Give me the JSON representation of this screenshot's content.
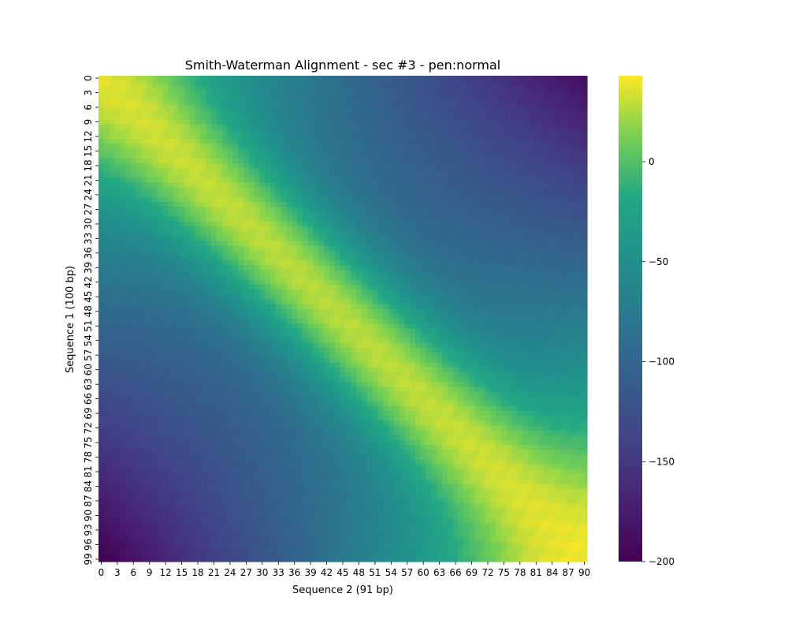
{
  "chart_data": {
    "type": "heatmap",
    "title": "Smith-Waterman Alignment - sec #3 - pen:normal",
    "xlabel": "Sequence 2 (91 bp)",
    "ylabel": "Sequence 1 (100 bp)",
    "n_cols": 91,
    "n_rows": 100,
    "x_ticks": [
      0,
      3,
      6,
      9,
      12,
      15,
      18,
      21,
      24,
      27,
      30,
      33,
      36,
      39,
      42,
      45,
      48,
      51,
      54,
      57,
      60,
      63,
      66,
      69,
      72,
      75,
      78,
      81,
      84,
      87,
      90
    ],
    "y_ticks": [
      0,
      3,
      6,
      9,
      12,
      15,
      18,
      21,
      24,
      27,
      30,
      33,
      36,
      39,
      42,
      45,
      48,
      51,
      54,
      57,
      60,
      63,
      66,
      69,
      72,
      75,
      78,
      81,
      84,
      87,
      90,
      93,
      96,
      99
    ],
    "colorbar": {
      "vmin": -200,
      "vmax": 43,
      "ticks": [
        0,
        -50,
        -100,
        -150,
        -200
      ],
      "tick_labels": [
        "0",
        "−50",
        "−100",
        "−150",
        "−200"
      ],
      "colormap": "viridis"
    },
    "corner_values": {
      "top_left": 5,
      "top_right": -188,
      "bottom_left": -200,
      "bottom_right": 43,
      "diagonal_peak": 40
    }
  }
}
